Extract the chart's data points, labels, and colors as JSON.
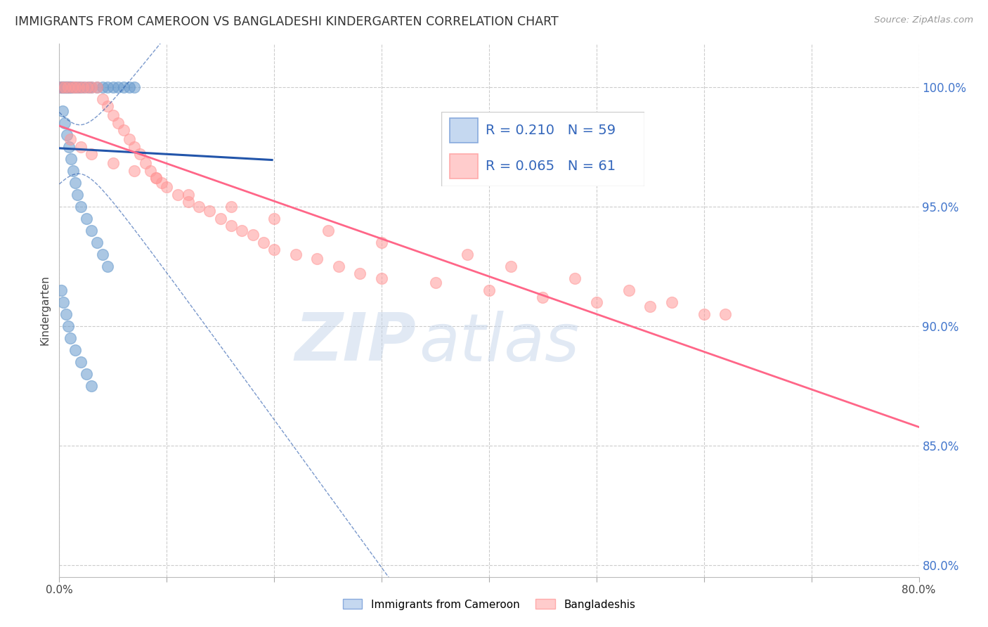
{
  "title": "IMMIGRANTS FROM CAMEROON VS BANGLADESHI KINDERGARTEN CORRELATION CHART",
  "source": "Source: ZipAtlas.com",
  "ylabel": "Kindergarten",
  "yticks": [
    80.0,
    85.0,
    90.0,
    95.0,
    100.0
  ],
  "ytick_labels": [
    "80.0%",
    "85.0%",
    "90.0%",
    "95.0%",
    "100.0%"
  ],
  "xmin": 0.0,
  "xmax": 80.0,
  "ymin": 79.5,
  "ymax": 101.8,
  "legend_blue_label": "Immigrants from Cameroon",
  "legend_pink_label": "Bangladeshis",
  "R_blue": 0.21,
  "N_blue": 59,
  "R_pink": 0.065,
  "N_pink": 61,
  "blue_color": "#6699CC",
  "pink_color": "#FF9999",
  "trendline_blue_color": "#2255AA",
  "trendline_pink_color": "#FF6688",
  "watermark_zip": "ZIP",
  "watermark_atlas": "atlas",
  "blue_scatter_x": [
    0.1,
    0.2,
    0.15,
    0.3,
    0.25,
    0.4,
    0.35,
    0.5,
    0.45,
    0.6,
    0.55,
    0.7,
    0.65,
    0.8,
    0.75,
    0.9,
    0.85,
    1.0,
    0.95,
    1.1,
    1.2,
    1.4,
    1.6,
    1.8,
    2.0,
    2.3,
    2.7,
    3.0,
    3.5,
    4.0,
    4.5,
    5.0,
    5.5,
    6.0,
    6.5,
    7.0,
    0.3,
    0.5,
    0.7,
    0.9,
    1.1,
    1.3,
    1.5,
    1.7,
    2.0,
    2.5,
    3.0,
    3.5,
    4.0,
    4.5,
    0.2,
    0.4,
    0.6,
    0.8,
    1.0,
    1.5,
    2.0,
    2.5,
    3.0
  ],
  "blue_scatter_y": [
    100.0,
    100.0,
    100.0,
    100.0,
    100.0,
    100.0,
    100.0,
    100.0,
    100.0,
    100.0,
    100.0,
    100.0,
    100.0,
    100.0,
    100.0,
    100.0,
    100.0,
    100.0,
    100.0,
    100.0,
    100.0,
    100.0,
    100.0,
    100.0,
    100.0,
    100.0,
    100.0,
    100.0,
    100.0,
    100.0,
    100.0,
    100.0,
    100.0,
    100.0,
    100.0,
    100.0,
    99.0,
    98.5,
    98.0,
    97.5,
    97.0,
    96.5,
    96.0,
    95.5,
    95.0,
    94.5,
    94.0,
    93.5,
    93.0,
    92.5,
    91.5,
    91.0,
    90.5,
    90.0,
    89.5,
    89.0,
    88.5,
    88.0,
    87.5
  ],
  "pink_scatter_x": [
    0.2,
    0.5,
    0.8,
    1.2,
    1.5,
    1.8,
    2.2,
    2.6,
    3.0,
    3.5,
    4.0,
    4.5,
    5.0,
    5.5,
    6.0,
    6.5,
    7.0,
    7.5,
    8.0,
    8.5,
    9.0,
    9.5,
    10.0,
    11.0,
    12.0,
    13.0,
    14.0,
    15.0,
    16.0,
    17.0,
    18.0,
    19.0,
    20.0,
    22.0,
    24.0,
    26.0,
    28.0,
    30.0,
    35.0,
    40.0,
    45.0,
    50.0,
    55.0,
    60.0,
    1.0,
    2.0,
    3.0,
    5.0,
    7.0,
    9.0,
    12.0,
    16.0,
    20.0,
    25.0,
    30.0,
    38.0,
    42.0,
    48.0,
    53.0,
    57.0,
    62.0
  ],
  "pink_scatter_y": [
    100.0,
    100.0,
    100.0,
    100.0,
    100.0,
    100.0,
    100.0,
    100.0,
    100.0,
    100.0,
    99.5,
    99.2,
    98.8,
    98.5,
    98.2,
    97.8,
    97.5,
    97.2,
    96.8,
    96.5,
    96.2,
    96.0,
    95.8,
    95.5,
    95.2,
    95.0,
    94.8,
    94.5,
    94.2,
    94.0,
    93.8,
    93.5,
    93.2,
    93.0,
    92.8,
    92.5,
    92.2,
    92.0,
    91.8,
    91.5,
    91.2,
    91.0,
    90.8,
    90.5,
    97.8,
    97.5,
    97.2,
    96.8,
    96.5,
    96.2,
    95.5,
    95.0,
    94.5,
    94.0,
    93.5,
    93.0,
    92.5,
    92.0,
    91.5,
    91.0,
    90.5
  ]
}
